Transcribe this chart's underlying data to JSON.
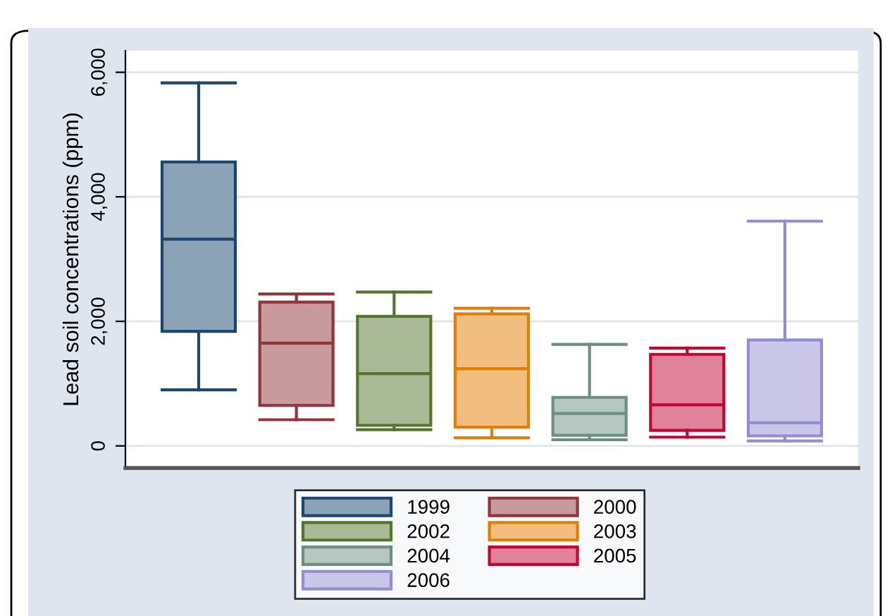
{
  "chart_data": {
    "type": "box",
    "ylabel": "Lead soil concentrations (ppm)",
    "categories": [
      null
    ],
    "ylim": [
      -355,
      6346
    ],
    "yticks": [
      0,
      {
        "value": 2000,
        "label": "2,000"
      },
      {
        "value": 4000,
        "label": "4,000"
      },
      {
        "value": 6000,
        "label": "6,000"
      }
    ],
    "grid": "y",
    "legend": "bottom",
    "tick_labels": "y",
    "series": [
      {
        "name": "1999",
        "color": "#1a476f",
        "boxes": [
          {
            "low": 900,
            "q1": 1840,
            "median": 3320,
            "q3": 4560,
            "high": 5830
          }
        ]
      },
      {
        "name": "2000",
        "color": "#90353b",
        "boxes": [
          {
            "low": 420,
            "q1": 650,
            "median": 1650,
            "q3": 2310,
            "high": 2440
          }
        ]
      },
      {
        "name": "2002",
        "color": "#55752f",
        "boxes": [
          {
            "low": 260,
            "q1": 330,
            "median": 1160,
            "q3": 2080,
            "high": 2470
          }
        ]
      },
      {
        "name": "2003",
        "color": "#e37e00",
        "boxes": [
          {
            "low": 130,
            "q1": 300,
            "median": 1240,
            "q3": 2120,
            "high": 2210
          }
        ]
      },
      {
        "name": "2004",
        "color": "#6e8e84",
        "boxes": [
          {
            "low": 100,
            "q1": 170,
            "median": 520,
            "q3": 780,
            "high": 1630
          }
        ]
      },
      {
        "name": "2005",
        "color": "#c10534",
        "boxes": [
          {
            "low": 140,
            "q1": 250,
            "median": 660,
            "q3": 1470,
            "high": 1570
          }
        ]
      },
      {
        "name": "2006",
        "color": "#938dd2",
        "boxes": [
          {
            "low": 80,
            "q1": 160,
            "median": 370,
            "q3": 1700,
            "high": 3610
          }
        ]
      }
    ]
  }
}
